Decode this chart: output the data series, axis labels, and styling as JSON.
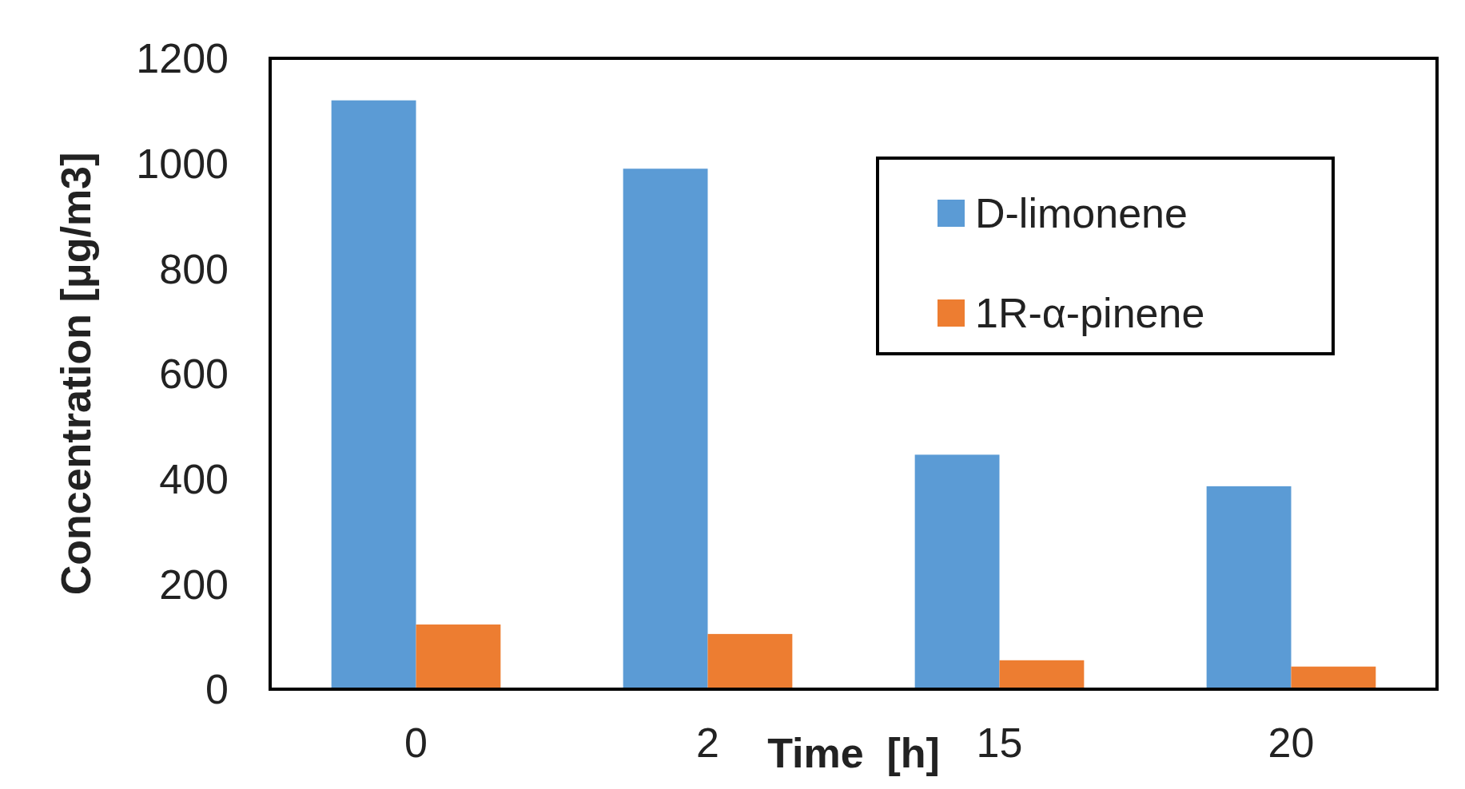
{
  "chart_data": {
    "type": "bar",
    "xlabel": "Time  [h]",
    "ylabel": "Concentration [μg/m3]",
    "categories": [
      "0",
      "2",
      "15",
      "20"
    ],
    "series": [
      {
        "name": "D-limonene",
        "color": "#5b9bd5",
        "values": [
          1120,
          990,
          446,
          386
        ]
      },
      {
        "name": "1R-α-pinene",
        "color": "#ed7d31",
        "values": [
          123,
          105,
          55,
          43
        ]
      }
    ],
    "ylim": [
      0,
      1200
    ],
    "yticks": [
      0,
      200,
      400,
      600,
      800,
      1000,
      1200
    ],
    "grid": false,
    "legend": "top right"
  }
}
